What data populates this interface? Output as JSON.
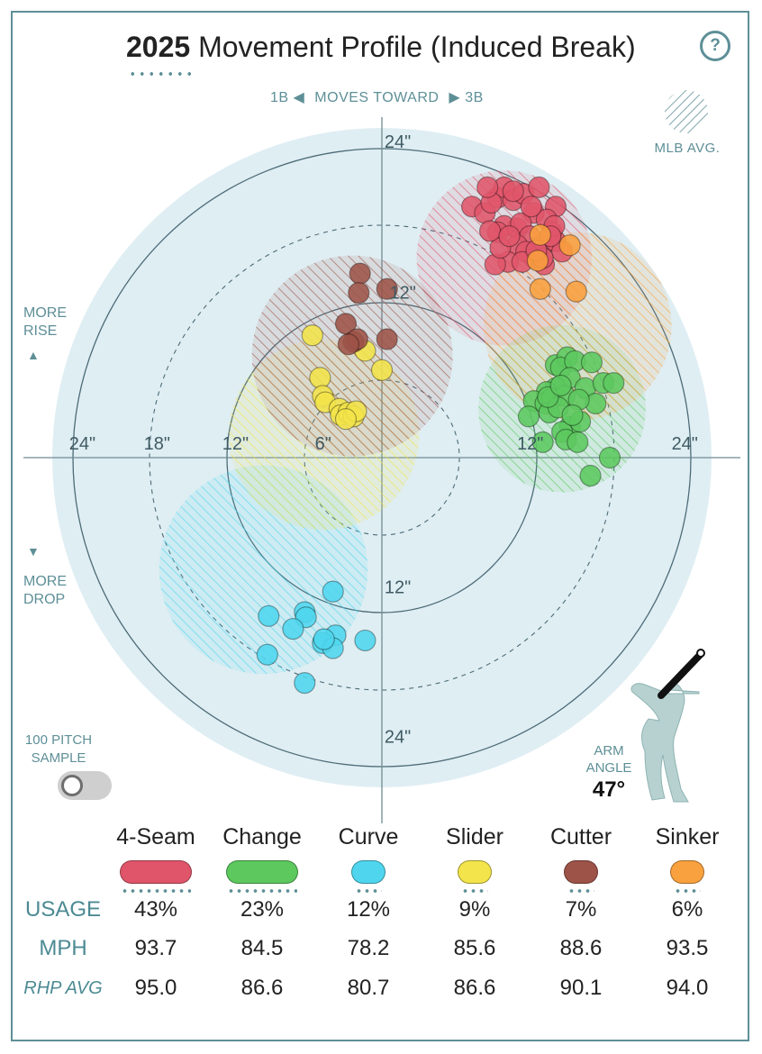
{
  "title": {
    "year": "2025",
    "text": "Movement Profile (Induced Break)"
  },
  "help": {
    "label": "?"
  },
  "direction": {
    "left": "1B",
    "middle": "MOVES TOWARD",
    "right": "3B"
  },
  "mlb_avg_label": "MLB AVG.",
  "more_rise": [
    "MORE",
    "RISE"
  ],
  "more_drop": [
    "MORE",
    "DROP"
  ],
  "sample_toggle": {
    "label_line1": "100 PITCH",
    "label_line2": "SAMPLE",
    "on": false
  },
  "arm_angle": {
    "label_line1": "ARM",
    "label_line2": "ANGLE",
    "value": "47°",
    "degrees": 47
  },
  "row_labels": {
    "usage": "USAGE",
    "mph": "MPH",
    "rhp_avg": "RHP AVG"
  },
  "icons": {
    "help": "question-icon",
    "pitcher": "pitcher-silhouette-icon",
    "arrow_left": "triangle-left-icon",
    "arrow_right": "triangle-right-icon",
    "arrow_up": "triangle-up-icon",
    "arrow_down": "triangle-down-icon"
  },
  "chart_data": {
    "type": "scatter",
    "title": "2025 Movement Profile (Induced Break)",
    "polar_rings_in": [
      6,
      12,
      18,
      24
    ],
    "ring_labels": {
      "horizontal": [
        "24\"",
        "18\"",
        "12\"",
        "6\"",
        "12\"",
        "24\""
      ],
      "vertical": [
        "24\"",
        "12\"",
        "12\"",
        "24\""
      ]
    },
    "xlim": [
      -24,
      24
    ],
    "ylim": [
      -24,
      24
    ],
    "series": [
      {
        "name": "4-Seam",
        "color": "#e0556a",
        "usage": "43%",
        "mph": "93.7",
        "rhp_avg": "95.0",
        "mlb_avg": {
          "x": 9.5,
          "y": 15.5,
          "r": 6.8
        },
        "points": [
          [
            7.0,
            19.5
          ],
          [
            8.0,
            19.0
          ],
          [
            9.0,
            20.2
          ],
          [
            9.5,
            21.0
          ],
          [
            8.5,
            19.8
          ],
          [
            10.2,
            20.0
          ],
          [
            11.0,
            20.5
          ],
          [
            12.2,
            21.0
          ],
          [
            13.5,
            19.5
          ],
          [
            11.8,
            19.0
          ],
          [
            10.5,
            17.8
          ],
          [
            9.5,
            18.0
          ],
          [
            10.8,
            18.2
          ],
          [
            12.8,
            18.5
          ],
          [
            13.2,
            17.5
          ],
          [
            11.5,
            17.2
          ],
          [
            10.5,
            16.5
          ],
          [
            9.0,
            17.5
          ],
          [
            12.5,
            16.5
          ],
          [
            13.5,
            16.8
          ],
          [
            14.0,
            16.0
          ],
          [
            11.8,
            15.5
          ],
          [
            9.8,
            15.2
          ],
          [
            8.8,
            15.0
          ],
          [
            12.6,
            15.0
          ],
          [
            11.2,
            16.0
          ],
          [
            13.4,
            18.0
          ],
          [
            10.2,
            20.7
          ],
          [
            8.2,
            21.0
          ],
          [
            11.6,
            19.5
          ],
          [
            9.2,
            16.3
          ],
          [
            12.5,
            15.5
          ],
          [
            8.4,
            17.6
          ],
          [
            10.9,
            15.2
          ],
          [
            13.1,
            17.2
          ],
          [
            9.9,
            17.2
          ],
          [
            12.0,
            16.1
          ]
        ]
      },
      {
        "name": "Change",
        "color": "#5cc85e",
        "usage": "23%",
        "mph": "84.5",
        "rhp_avg": "86.6",
        "mlb_avg": {
          "x": 14.0,
          "y": 3.8,
          "r": 6.5
        },
        "points": [
          [
            13.5,
            7.2
          ],
          [
            14.4,
            7.8
          ],
          [
            13.9,
            7.0
          ],
          [
            15.0,
            7.5
          ],
          [
            16.3,
            7.4
          ],
          [
            14.6,
            6.2
          ],
          [
            13.5,
            5.4
          ],
          [
            12.8,
            5.1
          ],
          [
            15.8,
            5.4
          ],
          [
            17.2,
            5.8
          ],
          [
            18.0,
            5.8
          ],
          [
            11.8,
            4.4
          ],
          [
            12.7,
            4.2
          ],
          [
            13.2,
            4.6
          ],
          [
            14.2,
            4.8
          ],
          [
            16.6,
            4.2
          ],
          [
            15.3,
            4.5
          ],
          [
            11.4,
            3.2
          ],
          [
            13.0,
            3.5
          ],
          [
            14.6,
            2.4
          ],
          [
            15.4,
            2.8
          ],
          [
            14.0,
            2.0
          ],
          [
            12.5,
            1.2
          ],
          [
            14.3,
            1.4
          ],
          [
            15.2,
            1.2
          ],
          [
            17.7,
            0.0
          ],
          [
            16.2,
            -1.4
          ],
          [
            13.7,
            3.9
          ],
          [
            12.9,
            4.7
          ],
          [
            14.8,
            3.3
          ],
          [
            13.9,
            5.6
          ]
        ]
      },
      {
        "name": "Curve",
        "color": "#4fd6ee",
        "usage": "12%",
        "mph": "78.2",
        "rhp_avg": "80.7",
        "mlb_avg": {
          "x": -9.2,
          "y": -8.7,
          "r": 8.1
        },
        "points": [
          [
            -3.8,
            -10.4
          ],
          [
            -8.8,
            -12.3
          ],
          [
            -6.0,
            -12.0
          ],
          [
            -5.9,
            -12.4
          ],
          [
            -6.9,
            -13.3
          ],
          [
            -3.6,
            -13.8
          ],
          [
            -4.6,
            -14.4
          ],
          [
            -3.8,
            -14.8
          ],
          [
            -1.3,
            -14.2
          ],
          [
            -4.5,
            -14.1
          ],
          [
            -8.9,
            -15.3
          ],
          [
            -6.0,
            -17.5
          ]
        ]
      },
      {
        "name": "Slider",
        "color": "#f2e44a",
        "usage": "9%",
        "mph": "85.6",
        "rhp_avg": "86.6",
        "mlb_avg": {
          "x": -4.5,
          "y": 1.8,
          "r": 7.4
        },
        "points": [
          [
            -5.4,
            9.5
          ],
          [
            -4.8,
            6.2
          ],
          [
            -1.3,
            8.3
          ],
          [
            0.0,
            6.8
          ],
          [
            -4.6,
            4.8
          ],
          [
            -4.4,
            4.3
          ],
          [
            -3.3,
            3.8
          ],
          [
            -3.2,
            3.3
          ],
          [
            -2.6,
            3.5
          ],
          [
            -2.2,
            3.2
          ],
          [
            -2.0,
            3.6
          ],
          [
            -2.8,
            3.0
          ]
        ]
      },
      {
        "name": "Cutter",
        "color": "#9d5348",
        "usage": "7%",
        "mph": "88.6",
        "rhp_avg": "90.1",
        "mlb_avg": {
          "x": -2.3,
          "y": 7.9,
          "r": 7.8
        },
        "points": [
          [
            -1.7,
            14.3
          ],
          [
            -1.8,
            12.8
          ],
          [
            0.4,
            13.1
          ],
          [
            -2.8,
            10.4
          ],
          [
            -2.2,
            9.0
          ],
          [
            -1.9,
            9.2
          ],
          [
            0.4,
            9.2
          ],
          [
            -2.6,
            8.8
          ]
        ]
      },
      {
        "name": "Sinker",
        "color": "#f9a13e",
        "usage": "6%",
        "mph": "93.5",
        "rhp_avg": "94.0",
        "mlb_avg": {
          "x": 15.2,
          "y": 10.2,
          "r": 7.3
        },
        "points": [
          [
            12.3,
            17.3
          ],
          [
            14.6,
            16.5
          ],
          [
            12.1,
            15.3
          ],
          [
            12.3,
            13.1
          ],
          [
            15.1,
            12.9
          ]
        ]
      }
    ],
    "grid": true
  }
}
